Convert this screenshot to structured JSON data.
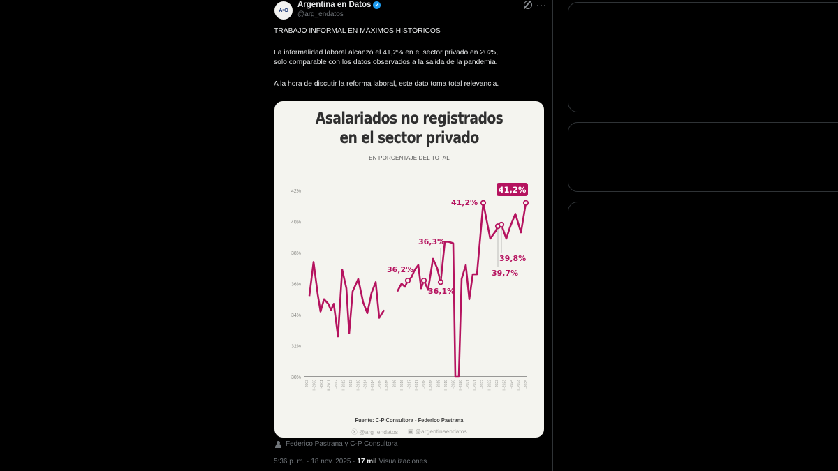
{
  "tweet": {
    "avatar_text": "A≡D",
    "author_name": "Argentina en Datos",
    "verified": true,
    "handle": "@arg_endatos",
    "icons": {
      "grok": "grok-icon",
      "more": "more-icon"
    },
    "more_glyph": "···",
    "headline": "TRABAJO INFORMAL EN MÁXIMOS HISTÓRICOS",
    "paragraph1_line1": "La informalidad laboral alcanzó el 41,2% en el sector privado en 2025,",
    "paragraph1_line2": "solo comparable con los datos observados a la salida de la pandemia.",
    "paragraph2": "A la hora de discutir la reforma laboral, este dato toma total relevancia.",
    "credit": "Federico Pastrana y C-P Consultora",
    "time": "5:36 p. m.",
    "date": "18 nov. 2025",
    "views_count": "17 mil",
    "views_label": "Visualizaciones"
  },
  "card": {
    "title_line1": "Asalariados no registrados",
    "title_line2": "en el sector privado",
    "subtitle": "EN PORCENTAJE DEL TOTAL",
    "source": "Fuente: C-P Consultora - Federico Pastrana",
    "social_x": "@arg_endatos",
    "social_ig": "@argentinaendatos"
  },
  "colors": {
    "line": "#b5135f",
    "card_bg": "#f4f4ef",
    "page_bg": "#000000",
    "axis": "#777777"
  },
  "chart_data": {
    "type": "line",
    "title": "Asalariados no registrados en el sector privado",
    "subtitle": "EN PORCENTAJE DEL TOTAL",
    "xlabel": "",
    "ylabel": "",
    "ylim": [
      30,
      42
    ],
    "yticks": [
      "30%",
      "32%",
      "34%",
      "36%",
      "38%",
      "40%",
      "42%"
    ],
    "grid": false,
    "x_tick_pattern": "alternating I-YYYY / III-YYYY quarterly labels from 2003 to 2025",
    "x_tick_labels": [
      "I-2003",
      "III-2003",
      "I-2011",
      "III-2011",
      "I-2012",
      "III-2012",
      "I-2013",
      "III-2013",
      "I-2014",
      "III-2014",
      "I-2015",
      "III-2015",
      "I-2016",
      "III-2016",
      "I-2017",
      "III-2017",
      "I-2018",
      "III-2018",
      "I-2019",
      "III-2019",
      "I-2020",
      "III-2020",
      "I-2021",
      "III-2021",
      "I-2022",
      "III-2022",
      "I-2023",
      "III-2023",
      "I-2024",
      "III-2024",
      "I-2025"
    ],
    "series": [
      {
        "name": "Asalariados no registrados (%) - tramo 1",
        "values": [
          35.2,
          37.4,
          35.3,
          34.2,
          35.0,
          34.7,
          34.3,
          34.7,
          32.6,
          36.9,
          35.7,
          32.8,
          35.5,
          36.3,
          34.8,
          34.1,
          35.4,
          36.1,
          33.8,
          34.3
        ]
      },
      {
        "name": "Asalariados no registrados (%) - tramo 2",
        "values": [
          35.5,
          36.0,
          35.8,
          36.2,
          36.4,
          36.9,
          37.2,
          35.7,
          36.2,
          35.6,
          37.6,
          37.0,
          36.1,
          38.7,
          38.7,
          38.6,
          30.0,
          30.0,
          36.3,
          37.2,
          35.0,
          36.6,
          36.6,
          41.2,
          38.9,
          39.4,
          39.7,
          39.8,
          38.9,
          39.6,
          40.5,
          39.3,
          41.2
        ]
      }
    ],
    "annotations": [
      {
        "label": "36,2%",
        "value": 36.2
      },
      {
        "label": "36,3%",
        "value": 36.3
      },
      {
        "label": "36,1%",
        "value": 36.1
      },
      {
        "label": "41,2%",
        "value": 41.2
      },
      {
        "label": "39,7%",
        "value": 39.7
      },
      {
        "label": "39,8%",
        "value": 39.8
      },
      {
        "label": "41,2%",
        "value": 41.2,
        "highlighted": true
      }
    ]
  }
}
